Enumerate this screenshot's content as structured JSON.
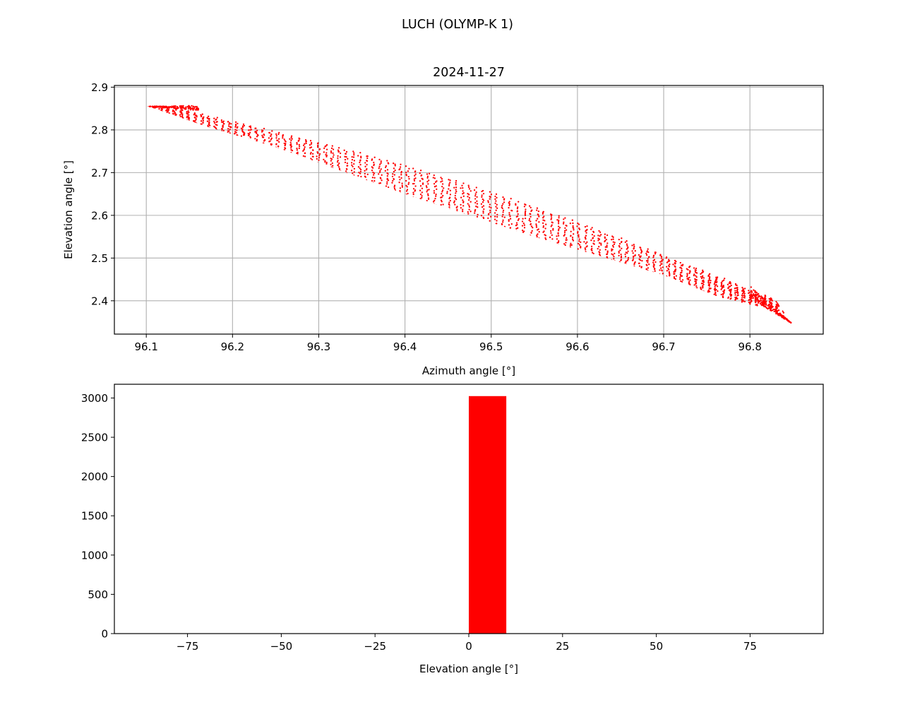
{
  "figure": {
    "suptitle": "LUCH (OLYMP-K 1)",
    "marker_color": "#ff0000"
  },
  "chart_data": [
    {
      "type": "scatter",
      "title": "2024-11-27",
      "xlabel": "Azimuth angle [°]",
      "ylabel": "Elevation angle [°]",
      "xlim": [
        96.063,
        96.885
      ],
      "ylim": [
        2.322,
        2.904
      ],
      "xticks": [
        96.1,
        96.2,
        96.3,
        96.4,
        96.5,
        96.6,
        96.7,
        96.8
      ],
      "xtick_labels": [
        "96.1",
        "96.2",
        "96.3",
        "96.4",
        "96.5",
        "96.6",
        "96.7",
        "96.8"
      ],
      "yticks": [
        2.4,
        2.5,
        2.6,
        2.7,
        2.8,
        2.9
      ],
      "ytick_labels": [
        "2.4",
        "2.5",
        "2.6",
        "2.7",
        "2.8",
        "2.9"
      ],
      "grid": true,
      "color": "#ff0000",
      "x_range": [
        96.101,
        96.848
      ],
      "y_range": [
        2.348,
        2.876
      ],
      "envelope": {
        "outline": [
          [
            96.101,
            2.856
          ],
          [
            96.15,
            2.852
          ],
          [
            96.192,
            2.876
          ],
          [
            96.3,
            2.82
          ],
          [
            96.42,
            2.735
          ],
          [
            96.55,
            2.64
          ],
          [
            96.68,
            2.545
          ],
          [
            96.79,
            2.445
          ],
          [
            96.82,
            2.432
          ],
          [
            96.848,
            2.348
          ],
          [
            96.8,
            2.38
          ],
          [
            96.7,
            2.46
          ],
          [
            96.55,
            2.55
          ],
          [
            96.4,
            2.65
          ],
          [
            96.25,
            2.76
          ],
          [
            96.17,
            2.808
          ],
          [
            96.101,
            2.856
          ]
        ]
      }
    },
    {
      "type": "bar",
      "title": "",
      "xlabel": "Elevation angle [°]",
      "ylabel": "",
      "xlim": [
        -94.5,
        94.5
      ],
      "ylim": [
        0,
        3175
      ],
      "xticks": [
        -75,
        -50,
        -25,
        0,
        25,
        50,
        75
      ],
      "xtick_labels": [
        "−75",
        "−50",
        "−25",
        "0",
        "25",
        "50",
        "75"
      ],
      "yticks": [
        0,
        500,
        1000,
        1500,
        2000,
        2500,
        3000
      ],
      "ytick_labels": [
        "0",
        "500",
        "1000",
        "1500",
        "2000",
        "2500",
        "3000"
      ],
      "bins": [
        [
          0,
          10
        ]
      ],
      "values": [
        3024
      ],
      "color": "#ff0000"
    }
  ]
}
